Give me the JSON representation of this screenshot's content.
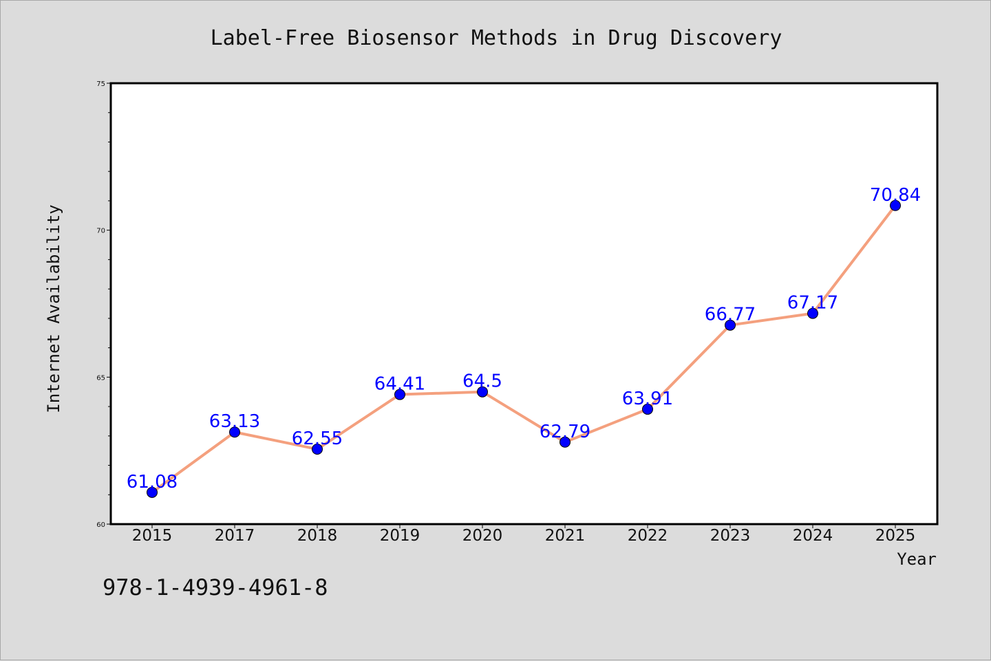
{
  "chart_data": {
    "type": "line",
    "title": "Label-Free Biosensor Methods in Drug Discovery",
    "xlabel": "Year",
    "ylabel": "Internet Availability",
    "categories": [
      "2015",
      "2017",
      "2018",
      "2019",
      "2020",
      "2021",
      "2022",
      "2023",
      "2024",
      "2025"
    ],
    "series": [
      {
        "values": [
          61.08,
          63.13,
          62.55,
          64.41,
          64.5,
          62.79,
          63.91,
          66.77,
          67.17,
          70.84
        ],
        "labels": [
          "61.08",
          "63.13",
          "62.55",
          "64.41",
          "64.5",
          "62.79",
          "63.91",
          "66.77",
          "67.17",
          "70.84"
        ],
        "line_color": "#f4a07e",
        "marker_color": "#0000ff",
        "label_color": "#0000ff"
      }
    ],
    "ylim": [
      60,
      75
    ],
    "yticks": [
      "60",
      "65",
      "70",
      "75"
    ],
    "grid": false
  },
  "footer": {
    "isbn": "978-1-4939-4961-8"
  }
}
